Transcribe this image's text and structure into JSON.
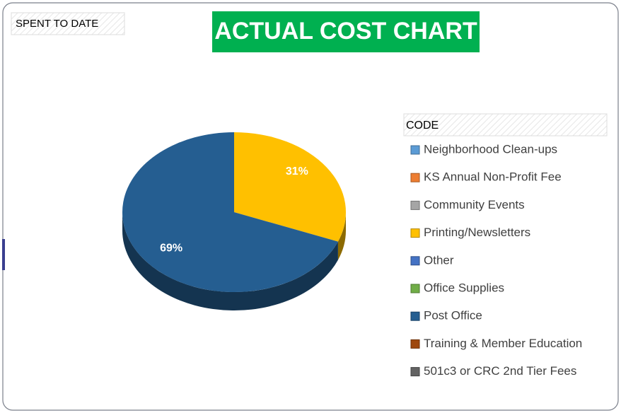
{
  "chart_data": {
    "type": "pie",
    "title": "ACTUAL COST CHART",
    "subtitle": "SPENT TO DATE",
    "legend_title": "CODE",
    "legend": "right",
    "categories": [
      "Neighborhood Clean-ups",
      "KS Annual Non-Profit Fee",
      "Community Events",
      "Printing/Newsletters",
      "Other",
      "Office Supplies",
      "Post Office",
      "Training & Member Education",
      "501c3 or CRC 2nd Tier Fees"
    ],
    "values": [
      0,
      0,
      0,
      31,
      0,
      0,
      69,
      0,
      0
    ],
    "value_labels": [
      null,
      null,
      null,
      "31%",
      null,
      null,
      "69%",
      null,
      null
    ],
    "colors": [
      "#5b9bd5",
      "#ed7d31",
      "#a5a5a5",
      "#ffc000",
      "#4472c4",
      "#70ad47",
      "#255e91",
      "#9e480e",
      "#636363"
    ]
  }
}
